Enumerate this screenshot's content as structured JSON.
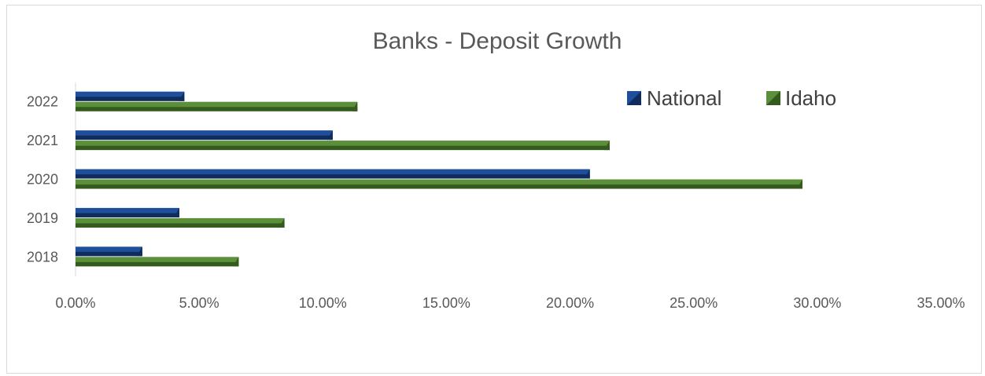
{
  "chart_data": {
    "type": "bar",
    "orientation": "horizontal",
    "title": "Banks - Deposit Growth",
    "categories": [
      "2018",
      "2019",
      "2020",
      "2021",
      "2022"
    ],
    "series": [
      {
        "name": "National",
        "values": [
          0.027,
          0.042,
          0.208,
          0.104,
          0.044
        ]
      },
      {
        "name": "Idaho",
        "values": [
          0.066,
          0.0845,
          0.294,
          0.216,
          0.114
        ]
      }
    ],
    "xlim": [
      0,
      0.35
    ],
    "x_tick_labels": [
      "0.00%",
      "5.00%",
      "10.00%",
      "15.00%",
      "20.00%",
      "25.00%",
      "30.00%",
      "35.00%"
    ],
    "grid": false,
    "legend_position": "top-right",
    "colors": {
      "National": "#1f4e9a",
      "National_dark": "#0f2c5c",
      "Idaho": "#5b8f3a",
      "Idaho_dark": "#345a1e"
    }
  }
}
